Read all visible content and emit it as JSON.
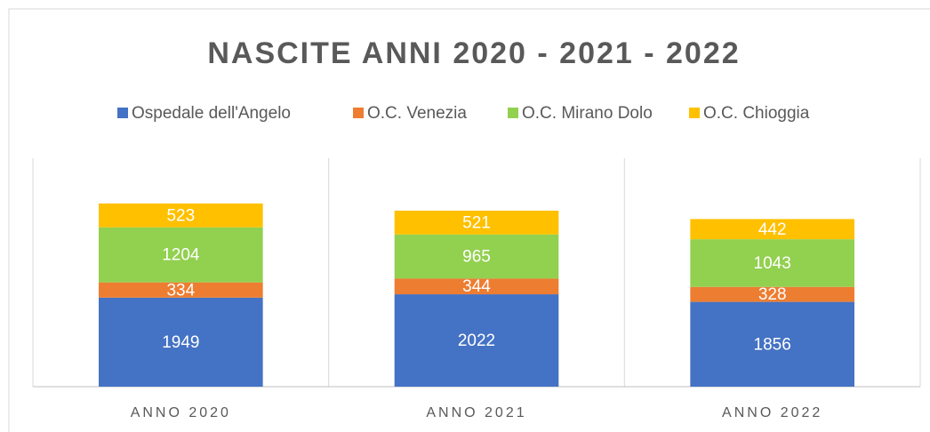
{
  "chart_data": {
    "type": "stacked_bar",
    "title": "NASCITE ANNI 2020 - 2021 - 2022",
    "categories": [
      "ANNO 2020",
      "ANNO 2021",
      "ANNO 2022"
    ],
    "series": [
      {
        "name": "Ospedale dell'Angelo",
        "color": "#4472c4",
        "values": [
          1949,
          2022,
          1856
        ]
      },
      {
        "name": "O.C. Venezia",
        "color": "#ed7d31",
        "values": [
          334,
          344,
          328
        ]
      },
      {
        "name": "O.C. Mirano Dolo",
        "color": "#92d050",
        "values": [
          1204,
          965,
          1043
        ]
      },
      {
        "name": "O.C. Chioggia",
        "color": "#ffc000",
        "values": [
          523,
          521,
          442
        ]
      }
    ],
    "ylim": [
      0,
      5000
    ],
    "legend": "top"
  }
}
